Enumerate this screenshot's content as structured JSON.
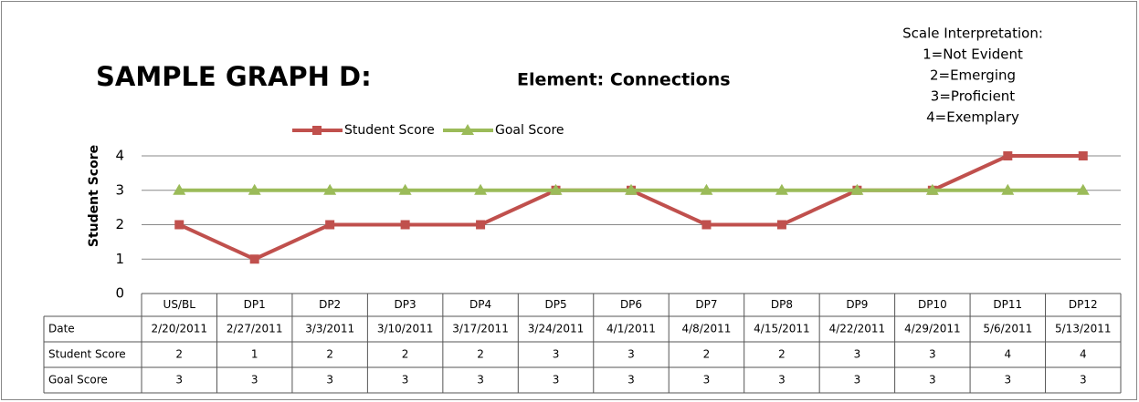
{
  "chart_data": {
    "type": "line",
    "title": "SAMPLE GRAPH D:",
    "subtitle": "Element: Connections",
    "annotation": [
      "Scale Interpretation:",
      "1=Not Evident",
      "2=Emerging",
      "3=Proficient",
      "4=Exemplary"
    ],
    "y_label": "Student Score",
    "categories": [
      "US/BL",
      "DP1",
      "DP2",
      "DP3",
      "DP4",
      "DP5",
      "DP6",
      "DP7",
      "DP8",
      "DP9",
      "DP10",
      "DP11",
      "DP12"
    ],
    "date_label": "Date",
    "dates": [
      "2/20/2011",
      "2/27/2011",
      "3/3/2011",
      "3/10/2011",
      "3/17/2011",
      "3/24/2011",
      "4/1/2011",
      "4/8/2011",
      "4/15/2011",
      "4/22/2011",
      "4/29/2011",
      "5/6/2011",
      "5/13/2011"
    ],
    "series": [
      {
        "name": "Student Score",
        "color": "#c0504d",
        "marker": "square",
        "values": [
          2,
          1,
          2,
          2,
          2,
          3,
          3,
          2,
          2,
          3,
          3,
          4,
          4
        ]
      },
      {
        "name": "Goal Score",
        "color": "#9bbb59",
        "marker": "triangle",
        "values": [
          3,
          3,
          3,
          3,
          3,
          3,
          3,
          3,
          3,
          3,
          3,
          3,
          3
        ]
      }
    ],
    "ylim": [
      0,
      4
    ],
    "yticks": [
      0,
      1,
      2,
      3,
      4
    ],
    "grid": true
  }
}
